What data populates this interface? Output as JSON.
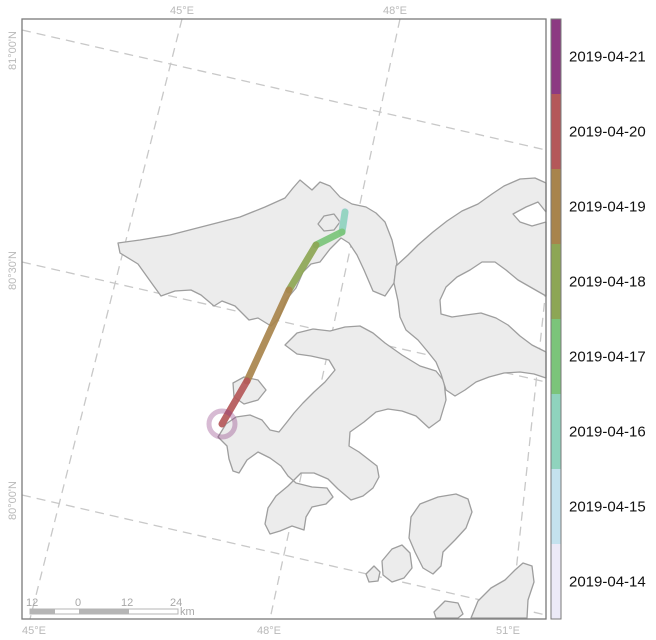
{
  "map": {
    "top_lon_labels": [
      "45°E",
      "48°E"
    ],
    "bottom_lon_labels": [
      "45°E",
      "48°E",
      "51°E"
    ],
    "lat_labels": [
      "81°00'N",
      "80°30'N",
      "80°00'N"
    ],
    "scale_bar": {
      "ticks": [
        "12",
        "0",
        "12",
        "24"
      ],
      "unit": "km"
    },
    "land_color": "#ececec",
    "track_start_marker": "circle"
  },
  "legend": {
    "dates": [
      "2019-04-21",
      "2019-04-20",
      "2019-04-19",
      "2019-04-18",
      "2019-04-17",
      "2019-04-16",
      "2019-04-15",
      "2019-04-14"
    ],
    "colors": [
      "#8c3a82",
      "#b45859",
      "#a8844c",
      "#8da655",
      "#7bc47a",
      "#8fd3bd",
      "#c4e2ee",
      "#eceaf7"
    ]
  },
  "track": {
    "segment_colors": [
      "#e4e1f5",
      "#8fd3bd",
      "#7bc47a",
      "#8da655",
      "#a8844c",
      "#b45859",
      "#8c3a82"
    ]
  }
}
